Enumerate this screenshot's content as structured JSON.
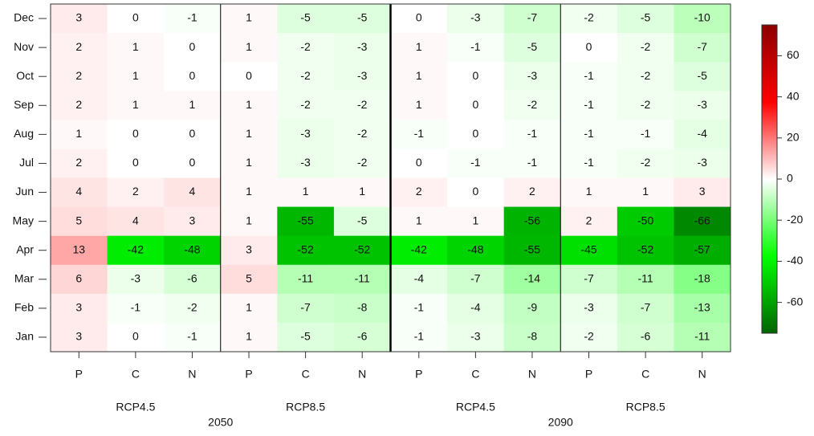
{
  "chart_data": {
    "type": "heatmap",
    "rows": [
      "Dec",
      "Nov",
      "Oct",
      "Sep",
      "Aug",
      "Jul",
      "Jun",
      "May",
      "Apr",
      "Mar",
      "Feb",
      "Jan"
    ],
    "columns": [
      "P",
      "C",
      "N",
      "P",
      "C",
      "N",
      "P",
      "C",
      "N",
      "P",
      "C",
      "N"
    ],
    "groups": [
      "RCP4.5",
      "RCP8.5",
      "RCP4.5",
      "RCP8.5"
    ],
    "years": [
      "2050",
      "2090"
    ],
    "values": [
      [
        3,
        0,
        -1,
        1,
        -5,
        -5,
        0,
        -3,
        -7,
        -2,
        -5,
        -10
      ],
      [
        2,
        1,
        0,
        1,
        -2,
        -3,
        1,
        -1,
        -5,
        0,
        -2,
        -7
      ],
      [
        2,
        1,
        0,
        0,
        -2,
        -3,
        1,
        0,
        -3,
        -1,
        -2,
        -5
      ],
      [
        2,
        1,
        1,
        1,
        -2,
        -2,
        1,
        0,
        -2,
        -1,
        -2,
        -3
      ],
      [
        1,
        0,
        0,
        1,
        -3,
        -2,
        -1,
        0,
        -1,
        -1,
        -1,
        -4
      ],
      [
        2,
        0,
        0,
        1,
        -3,
        -2,
        0,
        -1,
        -1,
        -1,
        -2,
        -3
      ],
      [
        4,
        2,
        4,
        1,
        1,
        1,
        2,
        0,
        2,
        1,
        1,
        3
      ],
      [
        5,
        4,
        3,
        1,
        -55,
        -5,
        1,
        1,
        -56,
        2,
        -50,
        -66
      ],
      [
        13,
        -42,
        -48,
        3,
        -52,
        -52,
        -42,
        -48,
        -55,
        -45,
        -52,
        -57
      ],
      [
        6,
        -3,
        -6,
        5,
        -11,
        -11,
        -4,
        -7,
        -14,
        -7,
        -11,
        -18
      ],
      [
        3,
        -1,
        -2,
        1,
        -7,
        -8,
        -1,
        -4,
        -9,
        -3,
        -7,
        -13
      ],
      [
        3,
        0,
        -1,
        1,
        -5,
        -6,
        -1,
        -3,
        -8,
        -2,
        -6,
        -11
      ]
    ],
    "zlim": [
      -75,
      75
    ],
    "zticks": [
      60,
      40,
      20,
      0,
      -20,
      -40,
      -60
    ],
    "colors": [
      "#006400",
      "#00ff00",
      "#ffffff",
      "#ff0000",
      "#8b0000"
    ]
  }
}
